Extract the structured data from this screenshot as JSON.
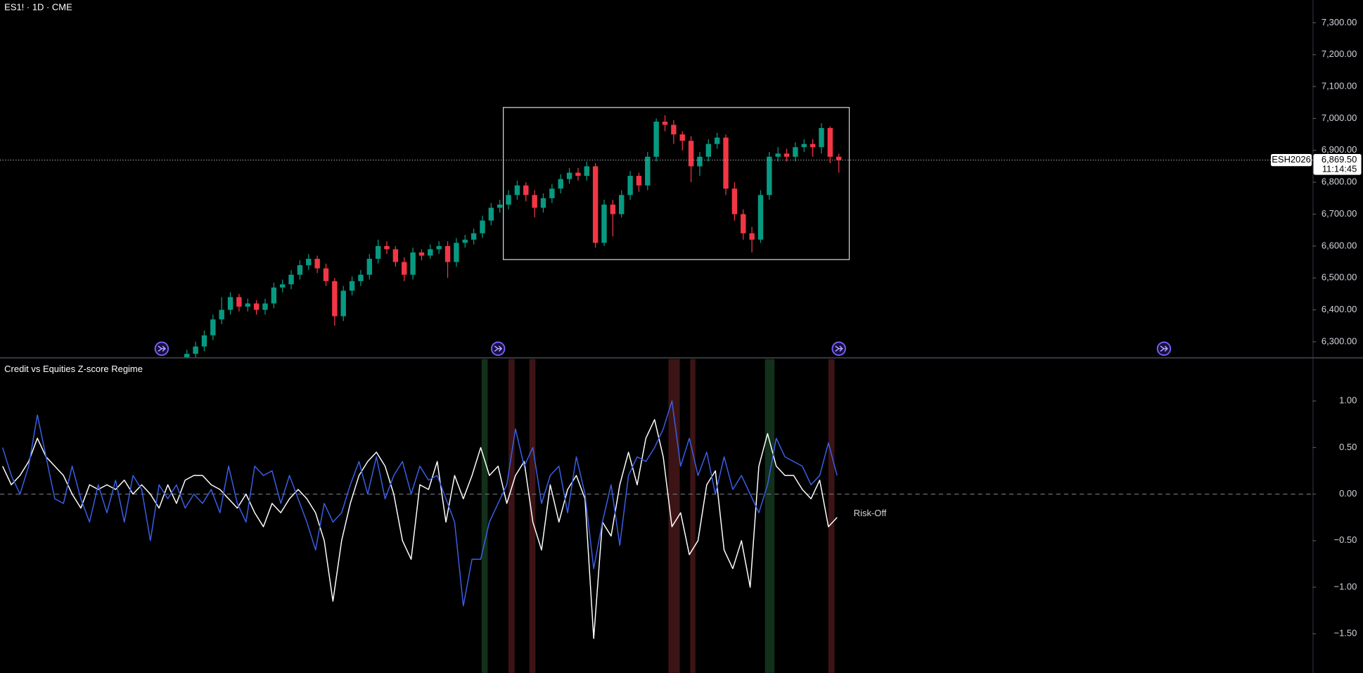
{
  "chart_data": [
    {
      "type": "candlestick",
      "title": "ES1! · 1D · CME",
      "open": [
        6240,
        6262,
        6285,
        6320,
        6370,
        6400,
        6440,
        6410,
        6420,
        6400,
        6420,
        6470,
        6480,
        6510,
        6540,
        6560,
        6530,
        6490,
        6380,
        6460,
        6490,
        6510,
        6560,
        6600,
        6590,
        6550,
        6510,
        6580,
        6570,
        6590,
        6600,
        6550,
        6610,
        6620,
        6640,
        6680,
        6720,
        6730,
        6760,
        6790,
        6760,
        6720,
        6750,
        6780,
        6810,
        6830,
        6820,
        6850,
        6610,
        6730,
        6700,
        6760,
        6820,
        6790,
        6880,
        6990,
        6980,
        6950,
        6930,
        6850,
        6880,
        6920,
        6940,
        6780,
        6700,
        6640,
        6620,
        6760,
        6880,
        6890,
        6880,
        6910,
        6920,
        6910,
        6970,
        6880
      ],
      "high": [
        6275,
        6300,
        6335,
        6385,
        6440,
        6455,
        6450,
        6435,
        6430,
        6435,
        6485,
        6495,
        6525,
        6555,
        6575,
        6570,
        6545,
        6500,
        6475,
        6505,
        6525,
        6575,
        6620,
        6615,
        6600,
        6565,
        6595,
        6590,
        6605,
        6615,
        6615,
        6625,
        6635,
        6655,
        6695,
        6735,
        6745,
        6775,
        6805,
        6800,
        6775,
        6765,
        6795,
        6825,
        6845,
        6845,
        6865,
        6860,
        6745,
        6745,
        6775,
        6835,
        6830,
        6895,
        7000,
        7010,
        6995,
        6960,
        6945,
        6895,
        6935,
        6955,
        6950,
        6800,
        6715,
        6660,
        6775,
        6895,
        6910,
        6905,
        6925,
        6935,
        6935,
        6985,
        6975,
        6890
      ],
      "low": [
        6225,
        6250,
        6270,
        6305,
        6355,
        6385,
        6395,
        6395,
        6385,
        6385,
        6405,
        6455,
        6465,
        6495,
        6525,
        6515,
        6475,
        6350,
        6365,
        6445,
        6475,
        6495,
        6545,
        6575,
        6535,
        6490,
        6495,
        6555,
        6560,
        6575,
        6500,
        6535,
        6595,
        6605,
        6625,
        6665,
        6705,
        6715,
        6745,
        6740,
        6690,
        6705,
        6735,
        6765,
        6795,
        6805,
        6805,
        6595,
        6600,
        6630,
        6690,
        6745,
        6770,
        6775,
        6865,
        6960,
        6920,
        6900,
        6800,
        6820,
        6865,
        6905,
        6760,
        6680,
        6620,
        6580,
        6610,
        6745,
        6865,
        6865,
        6865,
        6895,
        6880,
        6890,
        6860,
        6830
      ],
      "close": [
        6262,
        6285,
        6320,
        6370,
        6400,
        6440,
        6410,
        6420,
        6400,
        6420,
        6470,
        6480,
        6510,
        6540,
        6560,
        6530,
        6490,
        6380,
        6460,
        6490,
        6510,
        6560,
        6600,
        6590,
        6550,
        6510,
        6580,
        6570,
        6590,
        6600,
        6550,
        6610,
        6620,
        6640,
        6680,
        6720,
        6730,
        6760,
        6790,
        6760,
        6720,
        6750,
        6780,
        6810,
        6830,
        6820,
        6850,
        6610,
        6730,
        6700,
        6760,
        6820,
        6790,
        6880,
        6990,
        6980,
        6950,
        6930,
        6850,
        6880,
        6920,
        6940,
        6780,
        6700,
        6640,
        6620,
        6760,
        6880,
        6890,
        6880,
        6910,
        6920,
        6910,
        6970,
        6880,
        6869.5
      ],
      "up_color": "#089981",
      "down_color": "#f23645",
      "ylim": [
        6251,
        7371
      ],
      "yticks": [
        {
          "value": 7300,
          "label": "7,300.00"
        },
        {
          "value": 7200,
          "label": "7,200.00"
        },
        {
          "value": 7100,
          "label": "7,100.00"
        },
        {
          "value": 7000,
          "label": "7,000.00"
        },
        {
          "value": 6900,
          "label": "6,900.00"
        },
        {
          "value": 6800,
          "label": "6,800.00"
        },
        {
          "value": 6700,
          "label": "6,700.00"
        },
        {
          "value": 6600,
          "label": "6,600.00"
        },
        {
          "value": 6500,
          "label": "6,500.00"
        },
        {
          "value": 6400,
          "label": "6,400.00"
        },
        {
          "value": 6300,
          "label": "6,300.00"
        }
      ],
      "grid": false,
      "last_price": {
        "value": 6869.5,
        "label": "6,869.50"
      },
      "symbol": "ESH2026",
      "countdown": "11:14:45"
    },
    {
      "type": "line",
      "title": "Credit vs Equities Z-score Regime",
      "series": [
        {
          "color": "#ffffff",
          "values": [
            0.3,
            0.1,
            0.2,
            0.35,
            0.6,
            0.4,
            0.3,
            0.2,
            0.0,
            -0.15,
            0.1,
            0.05,
            0.1,
            0.05,
            0.15,
            0.0,
            0.1,
            0.0,
            -0.15,
            0.1,
            -0.1,
            0.15,
            0.2,
            0.2,
            0.1,
            0.05,
            -0.05,
            -0.15,
            0.0,
            -0.2,
            -0.35,
            -0.1,
            -0.2,
            -0.05,
            0.05,
            -0.05,
            -0.2,
            -0.5,
            -1.15,
            -0.5,
            -0.1,
            0.2,
            0.35,
            0.45,
            0.3,
            0.0,
            -0.5,
            -0.7,
            0.1,
            0.05,
            0.35,
            -0.3,
            0.2,
            -0.05,
            0.2,
            0.5,
            0.2,
            0.3,
            -0.1,
            0.2,
            0.35,
            -0.3,
            -0.6,
            0.1,
            -0.3,
            0.05,
            0.2,
            -0.05,
            -1.55,
            -0.3,
            -0.45,
            0.1,
            0.45,
            0.1,
            0.6,
            0.8,
            0.4,
            -0.35,
            -0.2,
            -0.65,
            -0.5,
            0.1,
            0.25,
            -0.6,
            -0.8,
            -0.5,
            -1.0,
            0.3,
            0.65,
            0.3,
            0.2,
            0.2,
            0.05,
            -0.05,
            0.15,
            -0.35,
            -0.25
          ]
        },
        {
          "color": "#3a5fe6",
          "values": [
            0.5,
            0.2,
            0.0,
            0.3,
            0.85,
            0.4,
            -0.05,
            -0.1,
            0.3,
            -0.05,
            -0.3,
            0.1,
            -0.2,
            0.15,
            -0.3,
            0.2,
            0.05,
            -0.5,
            0.1,
            -0.05,
            0.1,
            -0.15,
            0.0,
            -0.1,
            0.05,
            -0.2,
            0.3,
            -0.1,
            -0.3,
            0.3,
            0.2,
            0.25,
            -0.1,
            0.2,
            -0.05,
            -0.3,
            -0.6,
            -0.1,
            -0.3,
            -0.2,
            0.1,
            0.35,
            0.0,
            0.4,
            -0.05,
            0.2,
            0.35,
            0.0,
            0.3,
            0.15,
            0.2,
            -0.05,
            -0.3,
            -1.2,
            -0.7,
            -0.7,
            -0.3,
            -0.1,
            0.1,
            0.7,
            0.3,
            0.5,
            -0.1,
            0.2,
            0.3,
            -0.2,
            0.4,
            0.0,
            -0.8,
            -0.3,
            0.1,
            -0.55,
            0.2,
            0.4,
            0.35,
            0.5,
            0.7,
            1.0,
            0.3,
            0.6,
            0.2,
            0.45,
            0.0,
            0.4,
            0.05,
            0.2,
            0.0,
            -0.2,
            0.1,
            0.6,
            0.4,
            0.35,
            0.3,
            0.1,
            0.2,
            0.55,
            0.2
          ]
        }
      ],
      "regimes": [
        {
          "start": 55.1,
          "end": 55.8,
          "color": "#12301a"
        },
        {
          "start": 58.2,
          "end": 58.9,
          "color": "#3d1416"
        },
        {
          "start": 60.6,
          "end": 61.3,
          "color": "#3d1416"
        },
        {
          "start": 76.6,
          "end": 77.9,
          "color": "#3d1416"
        },
        {
          "start": 79.1,
          "end": 79.7,
          "color": "#3d1416"
        },
        {
          "start": 87.7,
          "end": 88.8,
          "color": "#12301a"
        },
        {
          "start": 95.0,
          "end": 95.7,
          "color": "#3d1416"
        }
      ],
      "hlines": [
        0
      ],
      "annotation": "Risk-Off",
      "ylim": [
        -1.92,
        1.45
      ],
      "yticks": [
        {
          "value": 1,
          "label": "1.00"
        },
        {
          "value": 0.5,
          "label": "0.50"
        },
        {
          "value": 0,
          "label": "0.00"
        },
        {
          "value": -0.5,
          "label": "−0.50"
        },
        {
          "value": -1,
          "label": "−1.00"
        },
        {
          "value": -1.5,
          "label": "−1.50"
        }
      ]
    }
  ]
}
